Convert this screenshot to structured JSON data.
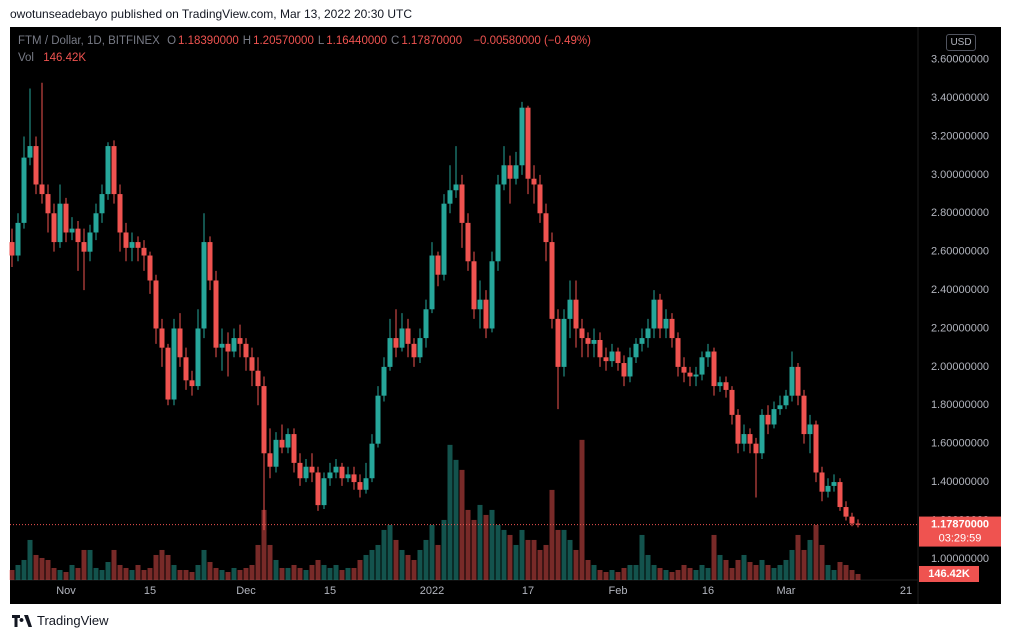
{
  "page": {
    "attribution": "owotunseadebayo published on TradingView.com, Mar 13, 2022 20:30 UTC",
    "brand": "TradingView"
  },
  "chart_data": {
    "type": "candlestick",
    "symbol": "FTM / Dollar, 1D, BITFINEX",
    "ohlc_legend": [
      {
        "key": "O",
        "text": "1.18390000"
      },
      {
        "key": "H",
        "text": "1.20570000"
      },
      {
        "key": "L",
        "text": "1.16440000"
      },
      {
        "key": "C",
        "text": "1.17870000"
      }
    ],
    "change_text": "−0.00580000 (−0.49%)",
    "volume_title": "Vol",
    "volume_label": "146.42K",
    "currency_button": "USD",
    "last_price_label": "1.17870000",
    "countdown": "03:29:59",
    "up_color": "#26a69a",
    "down_color": "#ef5350",
    "grid": false,
    "categories": [
      null,
      null,
      null,
      null,
      null,
      null,
      null,
      null,
      null,
      "Nov",
      null,
      null,
      null,
      null,
      null,
      null,
      null,
      null,
      null,
      null,
      null,
      null,
      null,
      "15",
      null,
      null,
      null,
      null,
      null,
      null,
      null,
      null,
      null,
      null,
      null,
      null,
      null,
      null,
      null,
      "Dec",
      null,
      null,
      null,
      null,
      null,
      null,
      null,
      null,
      null,
      null,
      null,
      null,
      null,
      "15",
      null,
      null,
      null,
      null,
      null,
      null,
      null,
      null,
      null,
      null,
      null,
      null,
      null,
      null,
      null,
      null,
      "2022",
      null,
      null,
      null,
      null,
      null,
      null,
      null,
      null,
      null,
      null,
      null,
      null,
      null,
      null,
      null,
      "17",
      null,
      null,
      null,
      null,
      null,
      null,
      null,
      null,
      null,
      null,
      null,
      null,
      null,
      null,
      "Feb",
      null,
      null,
      null,
      null,
      null,
      null,
      null,
      null,
      null,
      null,
      null,
      null,
      null,
      null,
      "16",
      null,
      null,
      null,
      null,
      null,
      null,
      null,
      null,
      null,
      null,
      null,
      null,
      "Mar",
      null,
      null,
      null,
      null,
      null,
      null,
      null,
      null,
      null,
      null,
      null,
      null,
      null,
      null,
      null,
      null,
      null,
      null,
      null,
      "21"
    ],
    "open": [
      2.65,
      2.58,
      2.75,
      3.09,
      3.15,
      2.95,
      2.9,
      2.8,
      2.65,
      2.85,
      2.7,
      2.72,
      2.65,
      2.6,
      2.7,
      2.8,
      2.9,
      3.15,
      2.9,
      2.7,
      2.62,
      2.65,
      2.62,
      2.58,
      2.45,
      2.2,
      2.1,
      1.83,
      2.2,
      2.05,
      1.93,
      1.9,
      2.2,
      2.65,
      2.45,
      2.1,
      2.12,
      2.08,
      2.15,
      2.12,
      2.05,
      1.98,
      1.9,
      1.55,
      1.48,
      1.62,
      1.58,
      1.65,
      1.5,
      1.42,
      1.48,
      1.45,
      1.28,
      1.42,
      1.45,
      1.48,
      1.42,
      1.44,
      1.4,
      1.36,
      1.42,
      1.6,
      1.85,
      2.0,
      2.15,
      2.1,
      2.2,
      2.12,
      2.05,
      2.15,
      2.3,
      2.58,
      2.48,
      2.85,
      2.92,
      2.95,
      2.75,
      2.55,
      2.3,
      2.35,
      2.2,
      2.55,
      2.95,
      3.05,
      2.98,
      3.05,
      3.35,
      2.98,
      2.95,
      2.8,
      2.65,
      2.25,
      2.0,
      2.25,
      2.35,
      2.2,
      2.15,
      2.12,
      2.14,
      2.05,
      2.03,
      2.08,
      2.02,
      1.95,
      2.05,
      2.12,
      2.15,
      2.2,
      2.35,
      2.2,
      2.25,
      2.15,
      2.0,
      1.97,
      1.95,
      1.96,
      2.05,
      2.08,
      1.9,
      1.92,
      1.88,
      1.75,
      1.6,
      1.65,
      1.6,
      1.55,
      1.75,
      1.7,
      1.78,
      1.8,
      1.85,
      2.0,
      1.85,
      1.65,
      1.7,
      1.45,
      1.35,
      1.38,
      1.4,
      1.27,
      1.22,
      1.1839,
      null,
      null,
      null,
      null,
      null,
      null,
      null,
      null
    ],
    "high": [
      2.72,
      2.8,
      3.2,
      3.45,
      3.2,
      3.48,
      2.95,
      2.85,
      2.95,
      2.88,
      2.78,
      2.76,
      2.72,
      2.74,
      2.85,
      2.95,
      3.17,
      3.18,
      2.95,
      2.75,
      2.7,
      2.68,
      2.66,
      2.6,
      2.48,
      2.25,
      2.12,
      2.25,
      2.28,
      2.1,
      1.98,
      2.3,
      2.8,
      2.68,
      2.5,
      2.2,
      2.18,
      2.2,
      2.22,
      2.15,
      2.1,
      2.05,
      1.95,
      1.68,
      1.66,
      1.7,
      1.68,
      1.68,
      1.55,
      1.52,
      1.55,
      1.48,
      1.45,
      1.5,
      1.52,
      1.5,
      1.48,
      1.48,
      1.44,
      1.5,
      1.65,
      1.9,
      2.05,
      2.25,
      2.3,
      2.28,
      2.25,
      2.15,
      2.2,
      2.35,
      2.65,
      2.6,
      2.9,
      3.05,
      3.15,
      3.0,
      2.8,
      2.6,
      2.45,
      2.4,
      2.6,
      3.0,
      3.15,
      3.1,
      3.12,
      3.38,
      3.36,
      3.05,
      3.0,
      2.85,
      2.7,
      2.3,
      2.3,
      2.45,
      2.45,
      2.25,
      2.18,
      2.2,
      2.18,
      2.1,
      2.12,
      2.1,
      2.06,
      2.1,
      2.15,
      2.2,
      2.25,
      2.4,
      2.38,
      2.3,
      2.28,
      2.18,
      2.05,
      2.0,
      2.0,
      2.08,
      2.12,
      2.1,
      1.95,
      1.95,
      1.9,
      1.78,
      1.7,
      1.68,
      1.63,
      1.78,
      1.8,
      1.82,
      1.85,
      1.88,
      2.08,
      2.02,
      1.88,
      1.75,
      1.72,
      1.48,
      1.42,
      1.44,
      1.42,
      1.3,
      1.24,
      1.2057,
      null,
      null,
      null,
      null,
      null,
      null,
      null,
      null
    ],
    "low": [
      2.52,
      2.55,
      2.72,
      3.05,
      2.9,
      2.85,
      2.7,
      2.6,
      2.62,
      2.65,
      2.66,
      2.5,
      2.4,
      2.55,
      2.66,
      2.75,
      2.87,
      2.85,
      2.6,
      2.55,
      2.55,
      2.55,
      2.5,
      2.38,
      2.12,
      2.0,
      1.8,
      1.8,
      2.0,
      1.88,
      1.85,
      1.88,
      2.15,
      2.4,
      2.05,
      1.98,
      1.95,
      2.05,
      2.05,
      1.98,
      1.9,
      1.8,
      1.15,
      1.42,
      1.45,
      1.55,
      1.55,
      1.45,
      1.38,
      1.4,
      1.4,
      1.25,
      1.26,
      1.38,
      1.42,
      1.38,
      1.4,
      1.36,
      1.32,
      1.34,
      1.4,
      1.58,
      1.82,
      1.98,
      2.05,
      2.08,
      2.05,
      2.0,
      2.02,
      2.1,
      2.28,
      2.42,
      2.45,
      2.8,
      2.88,
      2.62,
      2.5,
      2.25,
      2.2,
      2.15,
      2.18,
      2.5,
      2.92,
      2.85,
      2.95,
      3.0,
      2.9,
      2.85,
      2.75,
      2.55,
      2.2,
      1.78,
      1.95,
      2.15,
      2.1,
      2.05,
      2.05,
      2.05,
      2.0,
      1.98,
      2.0,
      1.98,
      1.9,
      1.92,
      2.02,
      2.08,
      2.1,
      2.15,
      2.15,
      2.15,
      2.1,
      1.95,
      1.92,
      1.9,
      1.9,
      1.93,
      2.0,
      1.85,
      1.87,
      1.84,
      1.7,
      1.55,
      1.56,
      1.55,
      1.32,
      1.52,
      1.65,
      1.68,
      1.75,
      1.78,
      1.82,
      1.8,
      1.6,
      1.55,
      1.4,
      1.3,
      1.32,
      1.35,
      1.25,
      1.2,
      1.17,
      1.1644,
      null,
      null,
      null,
      null,
      null,
      null,
      null,
      null
    ],
    "close": [
      2.58,
      2.75,
      3.09,
      3.15,
      2.95,
      2.9,
      2.8,
      2.65,
      2.85,
      2.7,
      2.72,
      2.65,
      2.6,
      2.7,
      2.8,
      2.9,
      3.15,
      2.9,
      2.7,
      2.62,
      2.65,
      2.62,
      2.58,
      2.45,
      2.2,
      2.1,
      1.83,
      2.2,
      2.05,
      1.93,
      1.9,
      2.2,
      2.65,
      2.45,
      2.1,
      2.12,
      2.08,
      2.15,
      2.12,
      2.05,
      1.98,
      1.9,
      1.55,
      1.48,
      1.62,
      1.58,
      1.65,
      1.5,
      1.42,
      1.48,
      1.45,
      1.28,
      1.42,
      1.45,
      1.48,
      1.42,
      1.44,
      1.4,
      1.36,
      1.42,
      1.6,
      1.85,
      2.0,
      2.15,
      2.1,
      2.2,
      2.12,
      2.05,
      2.15,
      2.3,
      2.58,
      2.48,
      2.85,
      2.92,
      2.95,
      2.75,
      2.55,
      2.3,
      2.35,
      2.2,
      2.55,
      2.95,
      3.05,
      2.98,
      3.05,
      3.35,
      2.98,
      2.95,
      2.8,
      2.65,
      2.25,
      2.0,
      2.25,
      2.35,
      2.2,
      2.15,
      2.12,
      2.14,
      2.05,
      2.03,
      2.08,
      2.02,
      1.95,
      2.05,
      2.12,
      2.15,
      2.2,
      2.35,
      2.2,
      2.25,
      2.15,
      2.0,
      1.97,
      1.95,
      1.96,
      2.05,
      2.08,
      1.9,
      1.92,
      1.88,
      1.75,
      1.6,
      1.65,
      1.6,
      1.55,
      1.75,
      1.7,
      1.78,
      1.8,
      1.85,
      2.0,
      1.85,
      1.65,
      1.7,
      1.45,
      1.35,
      1.38,
      1.4,
      1.27,
      1.22,
      1.1839,
      1.1787,
      null,
      null,
      null,
      null,
      null,
      null,
      null,
      null
    ],
    "volume": [
      244,
      366,
      488,
      976,
      610,
      537,
      488,
      293,
      244,
      195,
      366,
      293,
      732,
      732,
      293,
      244,
      439,
      732,
      366,
      293,
      244,
      366,
      244,
      293,
      610,
      732,
      610,
      366,
      244,
      244,
      195,
      366,
      732,
      439,
      293,
      244,
      195,
      293,
      244,
      293,
      366,
      854,
      1708,
      854,
      488,
      293,
      293,
      366,
      293,
      244,
      366,
      488,
      366,
      293,
      366,
      244,
      293,
      293,
      488,
      610,
      732,
      854,
      1220,
      1342,
      976,
      732,
      610,
      488,
      732,
      976,
      1342,
      854,
      1464,
      3294,
      2928,
      2684,
      1708,
      1464,
      1830,
      1586,
      1708,
      1342,
      1220,
      1098,
      854,
      1220,
      976,
      976,
      732,
      854,
      2196,
      1220,
      1220,
      976,
      732,
      3416,
      488,
      366,
      244,
      195,
      244,
      195,
      293,
      366,
      366,
      1098,
      610,
      366,
      293,
      244,
      195,
      244,
      366,
      293,
      244,
      366,
      293,
      1098,
      610,
      488,
      293,
      488,
      610,
      439,
      366,
      488,
      366,
      293,
      366,
      488,
      732,
      1098,
      732,
      976,
      1342,
      854,
      366,
      244,
      439,
      366,
      244,
      146.42,
      null,
      null,
      null,
      null,
      null,
      null,
      null,
      null
    ],
    "volume_ylim": [
      0,
      3900
    ],
    "ylim": [
      0.89,
      3.765
    ],
    "yticks": [
      {
        "value": 1.0,
        "label": "1.00000000"
      },
      {
        "value": 1.2,
        "label": "1.20000000"
      },
      {
        "value": 1.4,
        "label": "1.40000000"
      },
      {
        "value": 1.6,
        "label": "1.60000000"
      },
      {
        "value": 1.8,
        "label": "1.80000000"
      },
      {
        "value": 2.0,
        "label": "2.00000000"
      },
      {
        "value": 2.2,
        "label": "2.20000000"
      },
      {
        "value": 2.4,
        "label": "2.40000000"
      },
      {
        "value": 2.6,
        "label": "2.60000000"
      },
      {
        "value": 2.8,
        "label": "2.80000000"
      },
      {
        "value": 3.0,
        "label": "3.00000000"
      },
      {
        "value": 3.2,
        "label": "3.20000000"
      },
      {
        "value": 3.4,
        "label": "3.40000000"
      },
      {
        "value": 3.6,
        "label": "3.60000000"
      }
    ]
  }
}
